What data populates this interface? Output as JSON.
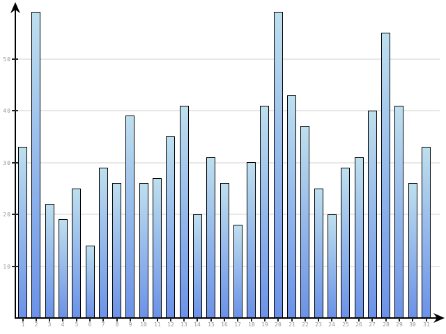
{
  "chart_data": {
    "type": "bar",
    "title": "",
    "xlabel": "",
    "ylabel": "",
    "categories": [
      "1",
      "2",
      "3",
      "4",
      "5",
      "6",
      "7",
      "8",
      "9",
      "10",
      "11",
      "12",
      "13",
      "14",
      "15",
      "16",
      "17",
      "18",
      "19",
      "20",
      "21",
      "22",
      "23",
      "24",
      "25",
      "26",
      "27",
      "28",
      "29",
      "30",
      "31"
    ],
    "values": [
      33,
      59,
      22,
      19,
      25,
      14,
      29,
      26,
      39,
      26,
      27,
      35,
      41,
      20,
      31,
      26,
      18,
      30,
      41,
      59,
      43,
      37,
      25,
      20,
      29,
      31,
      40,
      55,
      41,
      26,
      33
    ],
    "yticks": [
      10,
      20,
      30,
      40,
      50
    ],
    "ylim": [
      0,
      60
    ],
    "grid": "horizontal-only",
    "legend": "none",
    "colors": {
      "bar_gradient_top": "#bedfee",
      "bar_gradient_bottom": "#6b92e8",
      "bar_border": "#000000",
      "gridline": "#e8e8e8",
      "axis": "#000000",
      "tick_label": "#979797",
      "background": "#ffffff"
    }
  }
}
